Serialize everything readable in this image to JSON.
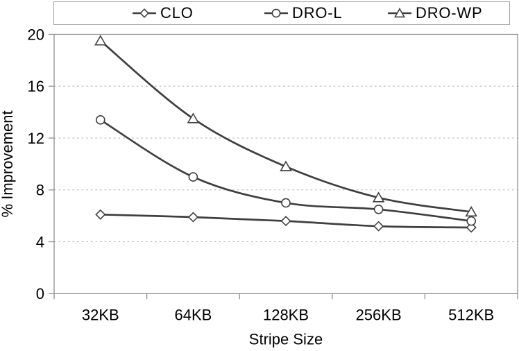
{
  "chart_data": {
    "type": "line",
    "title": "",
    "xlabel": "Stripe Size",
    "ylabel": "% Improvement",
    "categories": [
      "32KB",
      "64KB",
      "128KB",
      "256KB",
      "512KB"
    ],
    "series": [
      {
        "name": "CLO",
        "marker": "diamond",
        "values": [
          6.1,
          5.9,
          5.6,
          5.2,
          5.1
        ]
      },
      {
        "name": "DRO-L",
        "marker": "circle",
        "values": [
          13.4,
          9.0,
          7.0,
          6.5,
          5.6
        ]
      },
      {
        "name": "DRO-WP",
        "marker": "triangle",
        "values": [
          19.5,
          13.5,
          9.8,
          7.4,
          6.3
        ]
      }
    ],
    "ylim": [
      0,
      20
    ],
    "yticks": [
      0,
      4,
      8,
      12,
      16,
      20
    ],
    "grid": "horizontal-dashed",
    "legend_position": "top",
    "line_style": "smoothed",
    "colors": {
      "line": "#3f3f3f",
      "marker_fill": "#ffffff",
      "grid": "#b0b0b0",
      "axis": "#8f8f8f",
      "text": "#000000",
      "background": "#ffffff",
      "legend_border": "#a3a3a3"
    }
  }
}
